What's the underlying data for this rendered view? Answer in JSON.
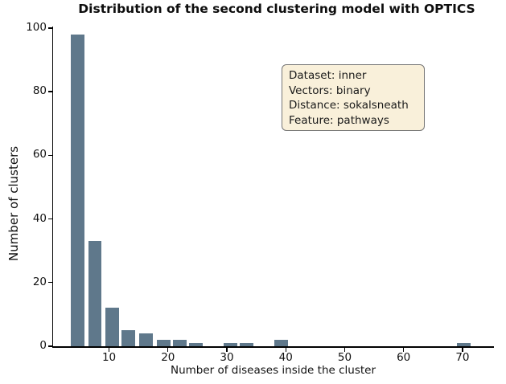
{
  "title": "Distribution of the second clustering model with OPTICS",
  "annotation": {
    "lines": [
      "Dataset: inner",
      "Vectors: binary",
      "Distance: sokalsneath",
      "Feature: pathways"
    ]
  },
  "colors": {
    "bar": "#5f788b",
    "annotation_bg": "#f9f0da",
    "annotation_border": "#767676",
    "axis": "#000000",
    "text": "#111111"
  },
  "chart_data": {
    "type": "bar",
    "title": "Distribution of the second clustering model with OPTICS",
    "xlabel": "Number of diseases inside the cluster",
    "ylabel": "Number of clusters",
    "x_ticks": [
      10,
      20,
      30,
      40,
      50,
      60,
      70
    ],
    "y_ticks": [
      0,
      20,
      40,
      60,
      80,
      100
    ],
    "xlim": [
      0.5,
      75.2
    ],
    "ylim": [
      0,
      100.5
    ],
    "grid": false,
    "legend": "none",
    "bar_width_units": 2.3,
    "bars": [
      {
        "x": 4.7,
        "count": 98
      },
      {
        "x": 7.6,
        "count": 33
      },
      {
        "x": 10.5,
        "count": 12
      },
      {
        "x": 13.3,
        "count": 5
      },
      {
        "x": 16.3,
        "count": 4
      },
      {
        "x": 19.3,
        "count": 2
      },
      {
        "x": 22.0,
        "count": 2
      },
      {
        "x": 24.7,
        "count": 1
      },
      {
        "x": 30.6,
        "count": 1
      },
      {
        "x": 33.4,
        "count": 1
      },
      {
        "x": 39.2,
        "count": 2
      },
      {
        "x": 70.2,
        "count": 1
      }
    ],
    "annotation_box": {
      "lines": [
        "Dataset: inner",
        "Vectors: binary",
        "Distance: sokalsneath",
        "Feature: pathways"
      ],
      "position": "upper center-right"
    }
  }
}
